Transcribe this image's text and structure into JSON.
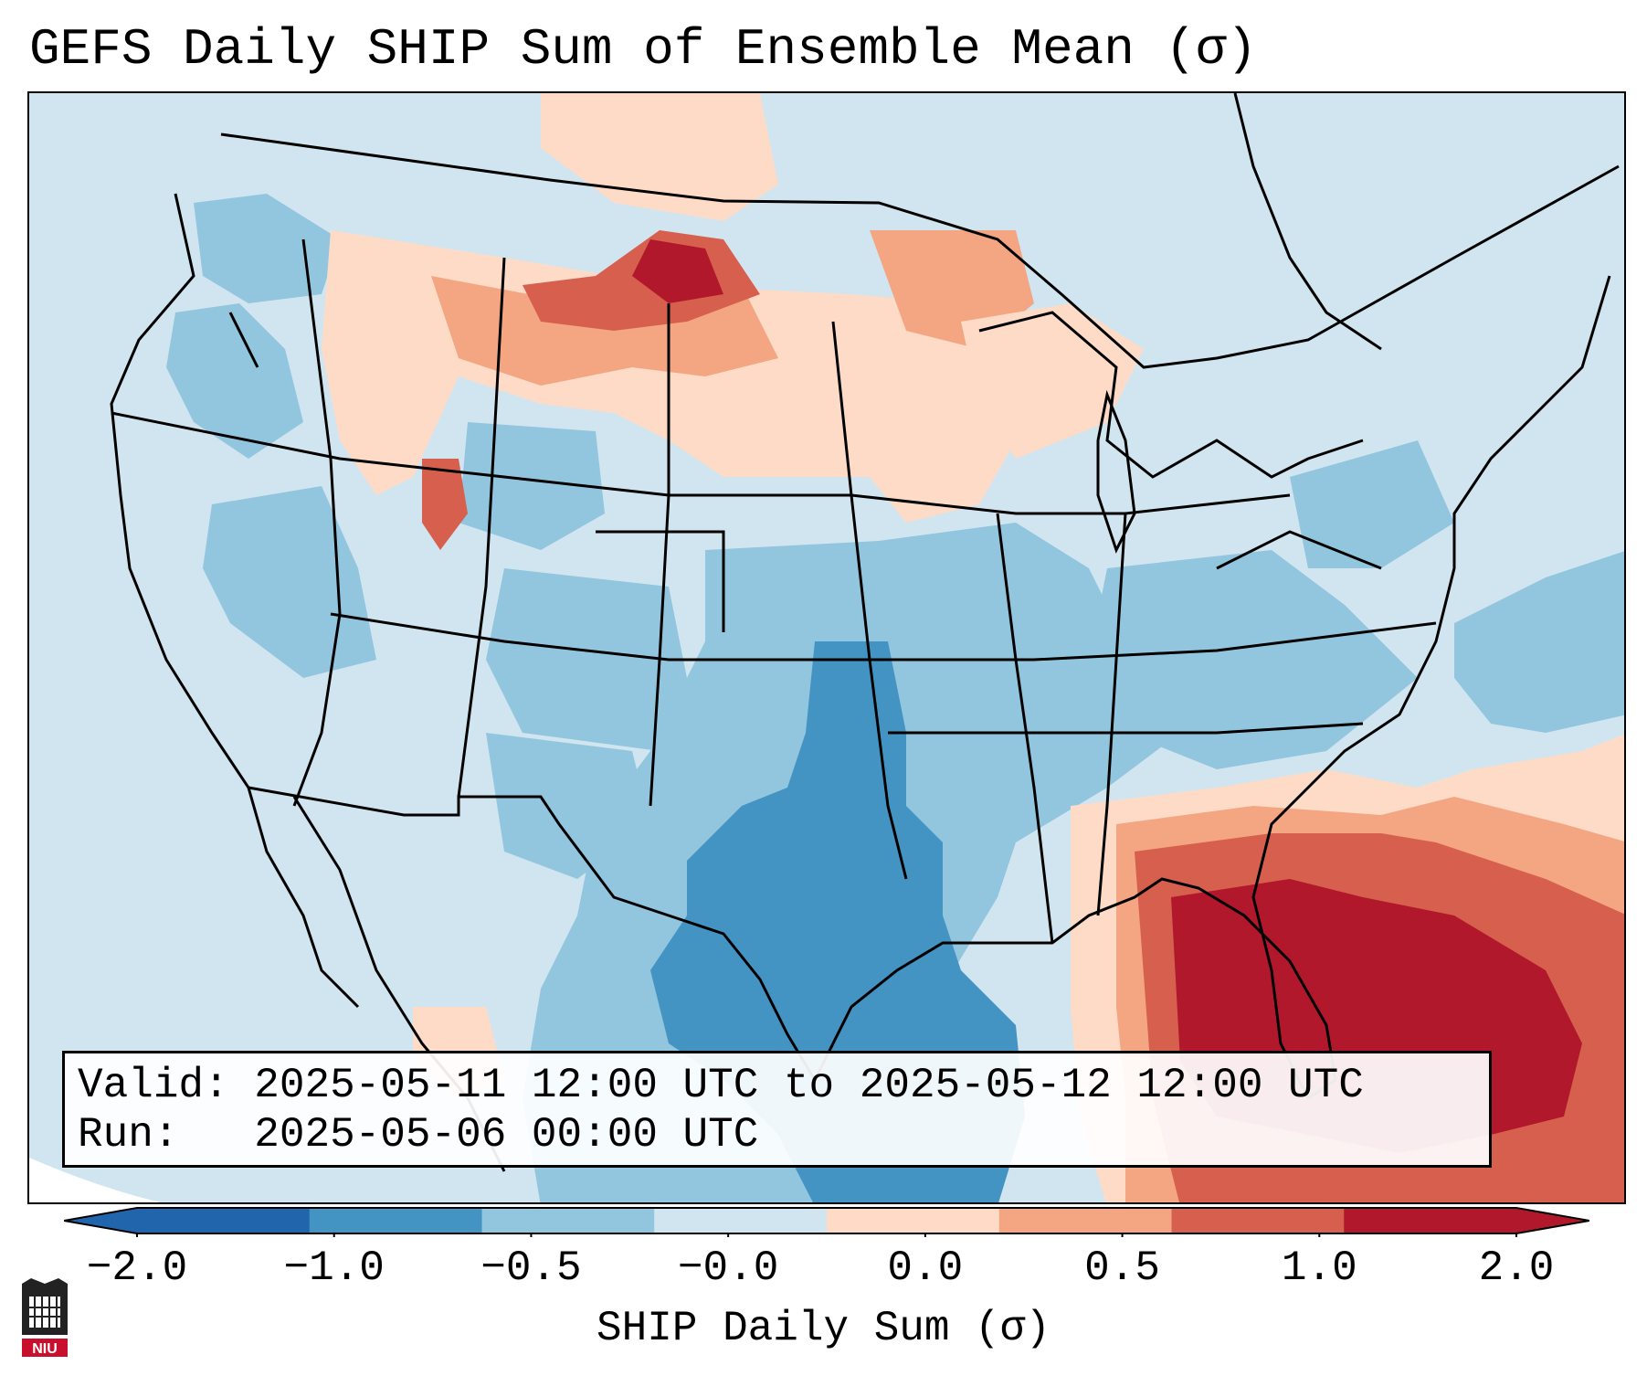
{
  "title": "GEFS Daily SHIP Sum of Ensemble Mean (σ)",
  "info": {
    "valid_label": "Valid:",
    "valid_value": "2025-05-11 12:00 UTC to 2025-05-12 12:00 UTC",
    "run_label": "Run:",
    "run_value": "2025-05-06 00:00 UTC"
  },
  "colorbar": {
    "label": "SHIP Daily Sum (σ)",
    "ticks": [
      "−2.0",
      "−1.0",
      "−0.5",
      "−0.0",
      "0.0",
      "0.5",
      "1.0",
      "2.0"
    ],
    "colors": [
      "#2166ac",
      "#4393c3",
      "#92c5de",
      "#d1e5f0",
      "#fddbc7",
      "#f4a582",
      "#d6604d",
      "#b2182b"
    ],
    "extend": "both"
  },
  "logo": {
    "text": "NIU",
    "icon": "niu-logo-icon"
  }
}
